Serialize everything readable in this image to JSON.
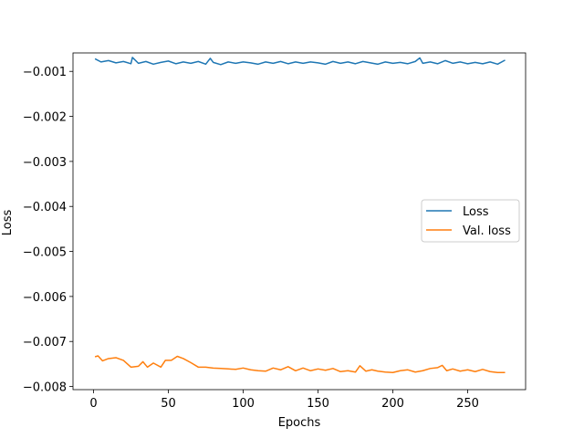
{
  "chart_data": {
    "type": "line",
    "title": "",
    "xlabel": "Epochs",
    "ylabel": "Loss",
    "xlim": [
      -13.7,
      288.7
    ],
    "ylim": [
      -0.00807,
      -0.00059
    ],
    "xticks": [
      0,
      50,
      100,
      150,
      200,
      250
    ],
    "xtick_labels": [
      "0",
      "50",
      "100",
      "150",
      "200",
      "250"
    ],
    "yticks": [
      -0.001,
      -0.002,
      -0.003,
      -0.004,
      -0.005,
      -0.006,
      -0.007,
      -0.008
    ],
    "ytick_labels": [
      "−0.001",
      "−0.002",
      "−0.003",
      "−0.004",
      "−0.005",
      "−0.006",
      "−0.007",
      "−0.008"
    ],
    "grid": false,
    "legend_position": "center-right",
    "series": [
      {
        "name": "Loss",
        "color": "#1f77b4",
        "x": [
          1,
          5,
          10,
          15,
          20,
          25,
          26,
          30,
          35,
          40,
          45,
          50,
          55,
          60,
          65,
          70,
          75,
          78,
          80,
          85,
          90,
          95,
          100,
          105,
          110,
          115,
          120,
          125,
          130,
          135,
          140,
          145,
          150,
          155,
          160,
          165,
          170,
          175,
          180,
          185,
          190,
          195,
          200,
          205,
          210,
          215,
          218,
          220,
          225,
          230,
          235,
          240,
          245,
          250,
          255,
          260,
          265,
          270,
          275
        ],
        "y": [
          -0.00072,
          -0.00079,
          -0.00076,
          -0.00081,
          -0.00078,
          -0.00083,
          -0.00069,
          -0.00082,
          -0.00078,
          -0.00084,
          -0.0008,
          -0.00077,
          -0.00083,
          -0.00079,
          -0.00082,
          -0.00078,
          -0.00084,
          -0.00071,
          -0.0008,
          -0.00085,
          -0.00079,
          -0.00082,
          -0.00079,
          -0.00081,
          -0.00084,
          -0.00079,
          -0.00082,
          -0.00078,
          -0.00083,
          -0.00079,
          -0.00082,
          -0.00079,
          -0.00081,
          -0.00084,
          -0.00078,
          -0.00082,
          -0.00079,
          -0.00083,
          -0.00078,
          -0.00081,
          -0.00084,
          -0.00079,
          -0.00082,
          -0.0008,
          -0.00083,
          -0.00078,
          -0.0007,
          -0.00082,
          -0.00079,
          -0.00083,
          -0.00076,
          -0.00082,
          -0.00079,
          -0.00083,
          -0.0008,
          -0.00083,
          -0.00079,
          -0.00084,
          -0.00075
        ]
      },
      {
        "name": "Val. loss",
        "color": "#ff7f0e",
        "x": [
          1,
          3,
          6,
          10,
          15,
          20,
          25,
          30,
          33,
          36,
          40,
          45,
          48,
          52,
          56,
          60,
          65,
          70,
          75,
          80,
          85,
          90,
          95,
          100,
          105,
          110,
          115,
          120,
          125,
          130,
          135,
          140,
          145,
          150,
          155,
          160,
          165,
          170,
          175,
          178,
          182,
          186,
          190,
          195,
          200,
          205,
          210,
          215,
          220,
          225,
          230,
          233,
          236,
          240,
          245,
          250,
          255,
          260,
          265,
          270,
          275
        ],
        "y": [
          -0.00734,
          -0.00732,
          -0.00743,
          -0.00738,
          -0.00736,
          -0.00742,
          -0.00757,
          -0.00755,
          -0.00745,
          -0.00757,
          -0.00748,
          -0.00757,
          -0.00742,
          -0.00742,
          -0.00733,
          -0.00738,
          -0.00747,
          -0.00757,
          -0.00757,
          -0.00759,
          -0.0076,
          -0.00761,
          -0.00762,
          -0.00759,
          -0.00763,
          -0.00765,
          -0.00766,
          -0.00759,
          -0.00763,
          -0.00756,
          -0.00765,
          -0.00759,
          -0.00765,
          -0.00761,
          -0.00764,
          -0.0076,
          -0.00767,
          -0.00765,
          -0.00768,
          -0.00754,
          -0.00766,
          -0.00763,
          -0.00766,
          -0.00768,
          -0.00769,
          -0.00765,
          -0.00763,
          -0.00768,
          -0.00765,
          -0.0076,
          -0.00758,
          -0.00753,
          -0.00765,
          -0.00761,
          -0.00766,
          -0.00763,
          -0.00767,
          -0.00762,
          -0.00767,
          -0.00769,
          -0.00769
        ]
      }
    ]
  }
}
